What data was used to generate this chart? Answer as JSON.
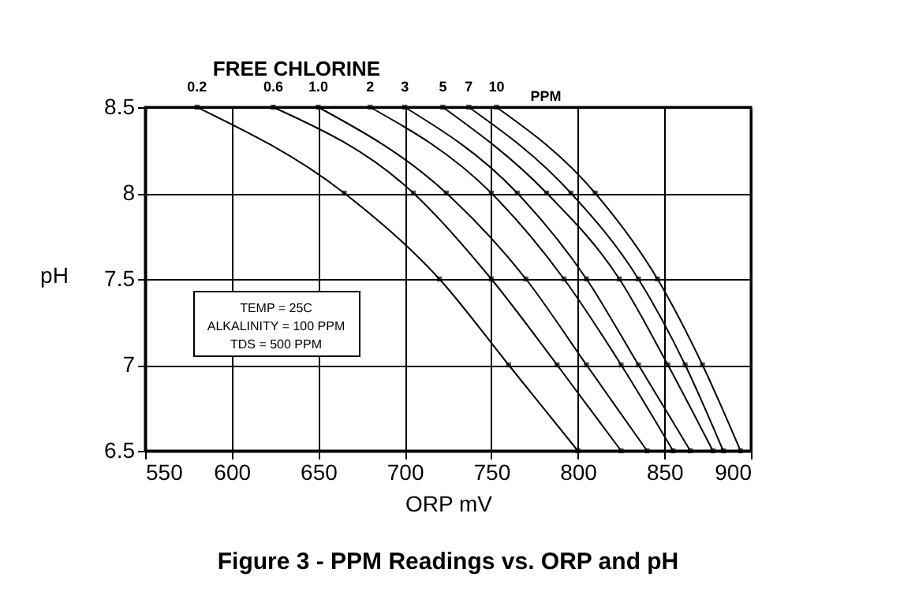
{
  "chart_data": {
    "type": "line",
    "title": "Figure 3 - PPM Readings vs. ORP and pH",
    "xlabel": "ORP mV",
    "ylabel": "pH",
    "annotations": [
      "FREE CHLORINE",
      "PPM",
      "TEMP = 25C",
      "ALKALINITY = 100 PPM",
      "TDS = 500 PPM"
    ],
    "series": [
      {
        "name": "0.2",
        "color": "#000000",
        "x": [
          580,
          665,
          720,
          760,
          800
        ],
        "values": [
          8.5,
          8,
          7.5,
          7,
          6.5
        ]
      },
      {
        "name": "0.6",
        "color": "#000000",
        "x": [
          624,
          705,
          750,
          788,
          825
        ],
        "values": [
          8.5,
          8,
          7.5,
          7,
          6.5
        ]
      },
      {
        "name": "1.0",
        "color": "#000000",
        "x": [
          650,
          724,
          770,
          805,
          840
        ],
        "values": [
          8.5,
          8,
          7.5,
          7,
          6.5
        ]
      },
      {
        "name": "2",
        "color": "#000000",
        "x": [
          680,
          750,
          792,
          825,
          855
        ],
        "values": [
          8.5,
          8,
          7.5,
          7,
          6.5
        ]
      },
      {
        "name": "3",
        "color": "#000000",
        "x": [
          700,
          765,
          805,
          835,
          865
        ],
        "values": [
          8.5,
          8,
          7.5,
          7,
          6.5
        ]
      },
      {
        "name": "5",
        "color": "#000000",
        "x": [
          722,
          782,
          824,
          852,
          878
        ],
        "values": [
          8.5,
          8,
          7.5,
          7,
          6.5
        ]
      },
      {
        "name": "7",
        "color": "#000000",
        "x": [
          737,
          796,
          835,
          862,
          884
        ],
        "values": [
          8.5,
          8,
          7.5,
          7,
          6.5
        ]
      },
      {
        "name": "10",
        "color": "#000000",
        "x": [
          753,
          810,
          846,
          872,
          894
        ],
        "values": [
          8.5,
          8,
          7.5,
          7,
          6.5
        ]
      }
    ],
    "xlim": [
      550,
      900
    ],
    "xticks": [
      550,
      600,
      650,
      700,
      750,
      800,
      850,
      900
    ],
    "ylim": [
      6.5,
      8.5
    ],
    "yticks": [
      6.5,
      7,
      7.5,
      8,
      8.5
    ],
    "grid": true,
    "marker": "square",
    "line_style": "solid"
  }
}
